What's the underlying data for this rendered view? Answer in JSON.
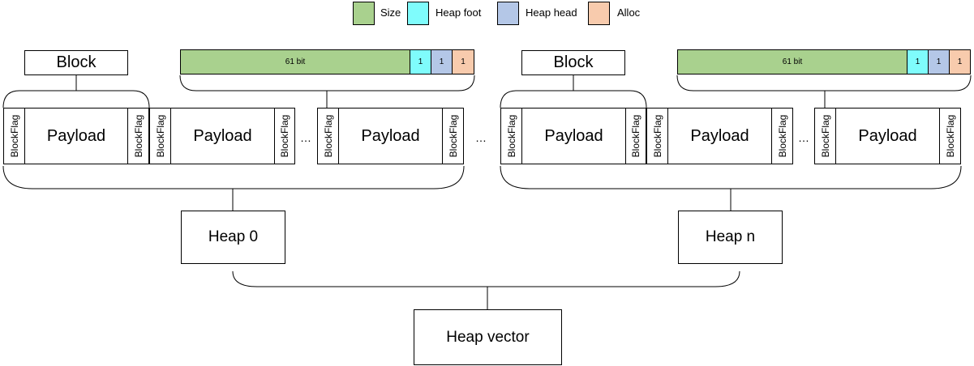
{
  "legend": {
    "items": [
      {
        "label": "Size",
        "color": "#a9d18e"
      },
      {
        "label": "Heap foot",
        "color": "#7ffcfc"
      },
      {
        "label": "Heap head",
        "color": "#b4c7e7"
      },
      {
        "label": "Alloc",
        "color": "#f8cbad"
      }
    ]
  },
  "block_label": "Block",
  "payload_label": "Payload",
  "flag_label": "BlockFlag",
  "bitfield": {
    "size_bits": "61 bit",
    "heap_foot_bits": "1",
    "heap_head_bits": "1",
    "alloc_bits": "1"
  },
  "ellipsis": "…",
  "heaps": {
    "first": "Heap 0",
    "last": "Heap n"
  },
  "heap_vector": "Heap vector"
}
